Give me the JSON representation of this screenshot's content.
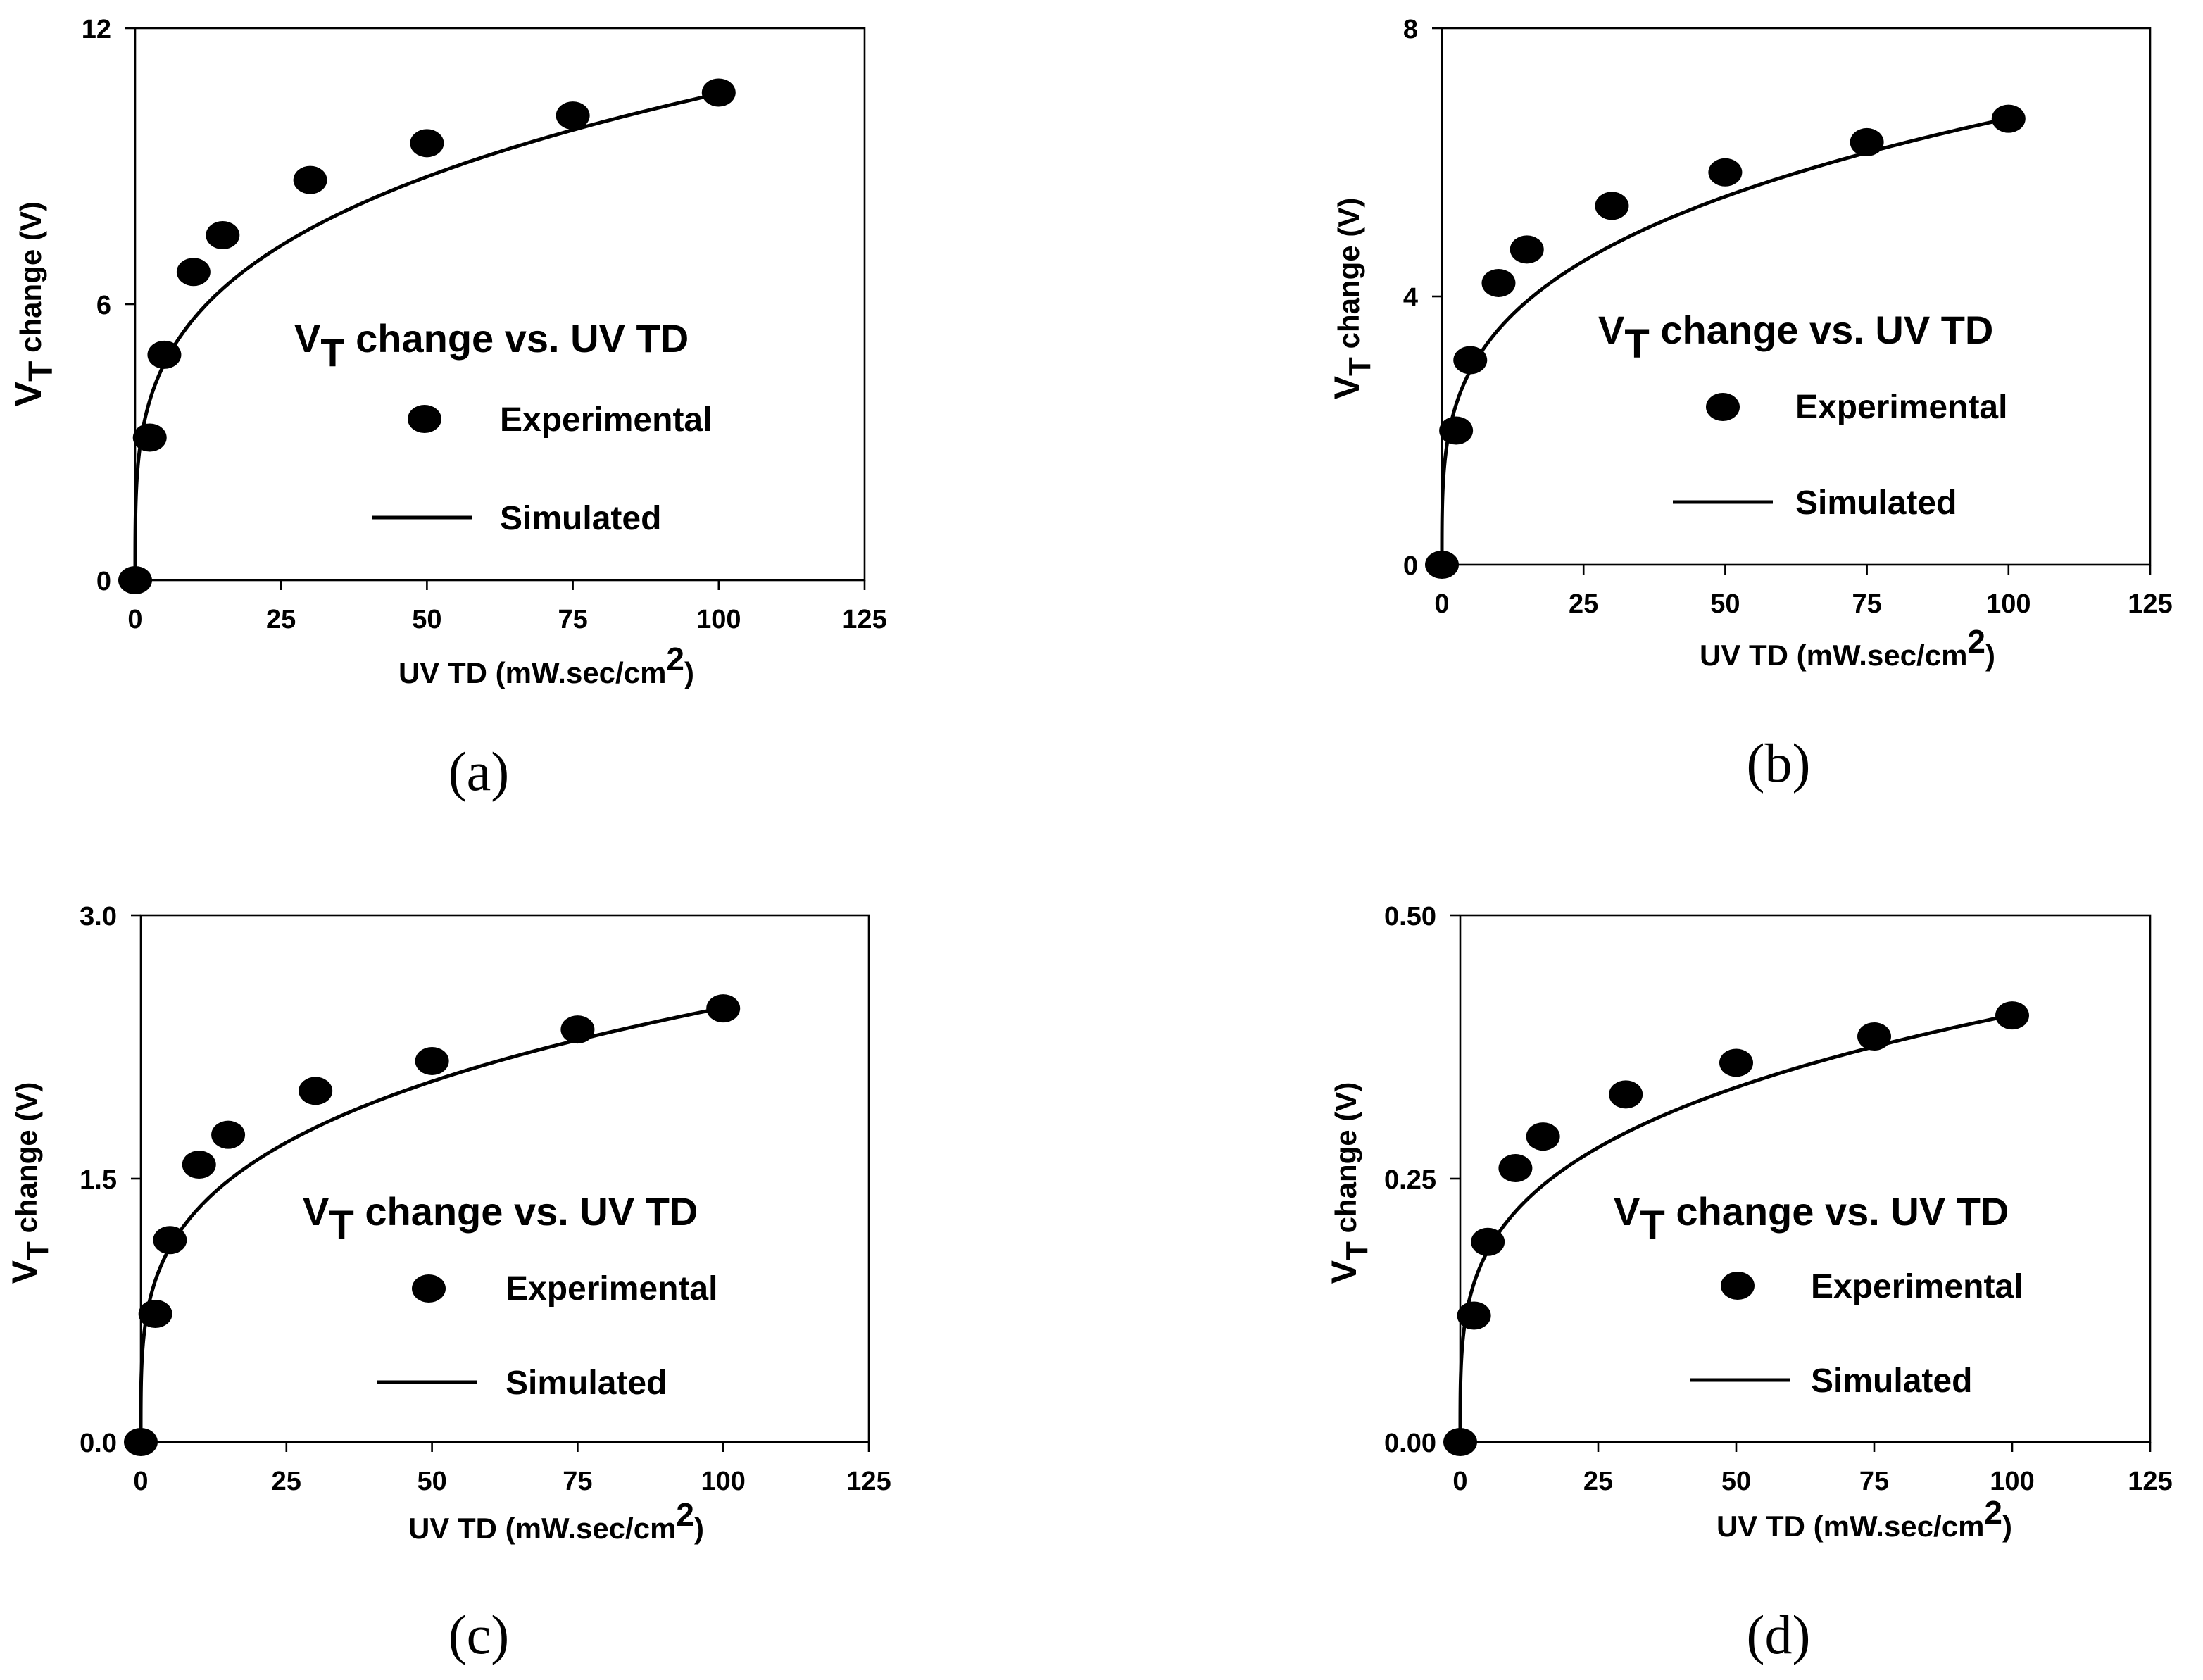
{
  "chart_data": [
    {
      "type": "scatter",
      "panel_label": "(a)",
      "title": "VT change vs. UV TD",
      "title_main": "V",
      "title_sub": "T",
      "title_rest": " change vs. UV TD",
      "xlabel": "UV TD (mW.sec/cm",
      "xlabel_sup": "2",
      "xlabel_end": ")",
      "ylabel_main": "V",
      "ylabel_sub": "T",
      "ylabel_rest": " change (V)",
      "xlim": [
        0,
        125
      ],
      "ylim": [
        0,
        12
      ],
      "xticks": [
        0,
        25,
        50,
        75,
        100,
        125
      ],
      "yticks": [
        0,
        6,
        12
      ],
      "ytick_labels": [
        "0",
        "6",
        "12"
      ],
      "legend": {
        "experimental": "Experimental",
        "simulated": "Simulated",
        "placement": "center-right"
      },
      "series": [
        {
          "name": "Experimental",
          "style": "markers",
          "x": [
            0,
            2.5,
            5,
            10,
            15,
            30,
            50,
            75,
            100
          ],
          "y": [
            0,
            3.1,
            4.9,
            6.7,
            7.5,
            8.7,
            9.5,
            10.1,
            10.6
          ]
        },
        {
          "name": "Simulated",
          "style": "line",
          "model": "power",
          "coef": 0.0,
          "scale": 3.05,
          "exponent": 0.27
        }
      ]
    },
    {
      "type": "scatter",
      "panel_label": "(b)",
      "title": "VT change vs. UV TD",
      "title_main": "V",
      "title_sub": "T",
      "title_rest": " change vs. UV TD",
      "xlabel": "UV TD (mW.sec/cm",
      "xlabel_sup": "2",
      "xlabel_end": ")",
      "ylabel_main": "V",
      "ylabel_sub": "T",
      "ylabel_rest": " change (V)",
      "xlim": [
        0,
        125
      ],
      "ylim": [
        0,
        8
      ],
      "xticks": [
        0,
        25,
        50,
        75,
        100,
        125
      ],
      "yticks": [
        0,
        4,
        8
      ],
      "ytick_labels": [
        "0",
        "4",
        "8"
      ],
      "legend": {
        "experimental": "Experimental",
        "simulated": "Simulated",
        "placement": "center-right"
      },
      "series": [
        {
          "name": "Experimental",
          "style": "markers",
          "x": [
            0,
            2.5,
            5,
            10,
            15,
            30,
            50,
            75,
            100
          ],
          "y": [
            0,
            2.0,
            3.05,
            4.2,
            4.7,
            5.35,
            5.85,
            6.3,
            6.65
          ]
        },
        {
          "name": "Simulated",
          "style": "line",
          "model": "power",
          "coef": 0.0,
          "scale": 1.85,
          "exponent": 0.278
        }
      ]
    },
    {
      "type": "scatter",
      "panel_label": "(c)",
      "title": "VT change vs. UV TD",
      "title_main": "V",
      "title_sub": "T",
      "title_rest": " change vs. UV TD",
      "xlabel": "UV TD (mW.sec/cm",
      "xlabel_sup": "2",
      "xlabel_end": ")",
      "ylabel_main": "V",
      "ylabel_sub": "T",
      "ylabel_rest": " change (V)",
      "xlim": [
        0,
        125
      ],
      "ylim": [
        0,
        3.0
      ],
      "xticks": [
        0,
        25,
        50,
        75,
        100,
        125
      ],
      "yticks": [
        0,
        1.5,
        3.0
      ],
      "ytick_labels": [
        "0.0",
        "1.5",
        "3.0"
      ],
      "legend": {
        "experimental": "Experimental",
        "simulated": "Simulated",
        "placement": "center-right"
      },
      "series": [
        {
          "name": "Experimental",
          "style": "markers",
          "x": [
            0,
            2.5,
            5,
            10,
            15,
            30,
            50,
            75,
            100
          ],
          "y": [
            0,
            0.73,
            1.15,
            1.58,
            1.75,
            2.0,
            2.17,
            2.35,
            2.47
          ]
        },
        {
          "name": "Simulated",
          "style": "line",
          "model": "power",
          "coef": 0.0,
          "scale": 0.72,
          "exponent": 0.268
        }
      ]
    },
    {
      "type": "scatter",
      "panel_label": "(d)",
      "title": "VT change vs. UV TD",
      "title_main": "V",
      "title_sub": "T",
      "title_rest": " change vs. UV TD",
      "xlabel": "UV TD (mW.sec/cm",
      "xlabel_sup": "2",
      "xlabel_end": ")",
      "ylabel_main": "V",
      "ylabel_sub": "T",
      "ylabel_rest": " change (V)",
      "xlim": [
        0,
        125
      ],
      "ylim": [
        0,
        0.5
      ],
      "xticks": [
        0,
        25,
        50,
        75,
        100,
        125
      ],
      "yticks": [
        0,
        0.25,
        0.5
      ],
      "ytick_labels": [
        "0.00",
        "0.25",
        "0.50"
      ],
      "legend": {
        "experimental": "Experimental",
        "simulated": "Simulated",
        "placement": "center-right"
      },
      "series": [
        {
          "name": "Experimental",
          "style": "markers",
          "x": [
            0,
            2.5,
            5,
            10,
            15,
            30,
            50,
            75,
            100
          ],
          "y": [
            0,
            0.12,
            0.19,
            0.26,
            0.29,
            0.33,
            0.36,
            0.385,
            0.405
          ]
        },
        {
          "name": "Simulated",
          "style": "line",
          "model": "power",
          "coef": 0.0,
          "scale": 0.118,
          "exponent": 0.268
        }
      ]
    }
  ]
}
